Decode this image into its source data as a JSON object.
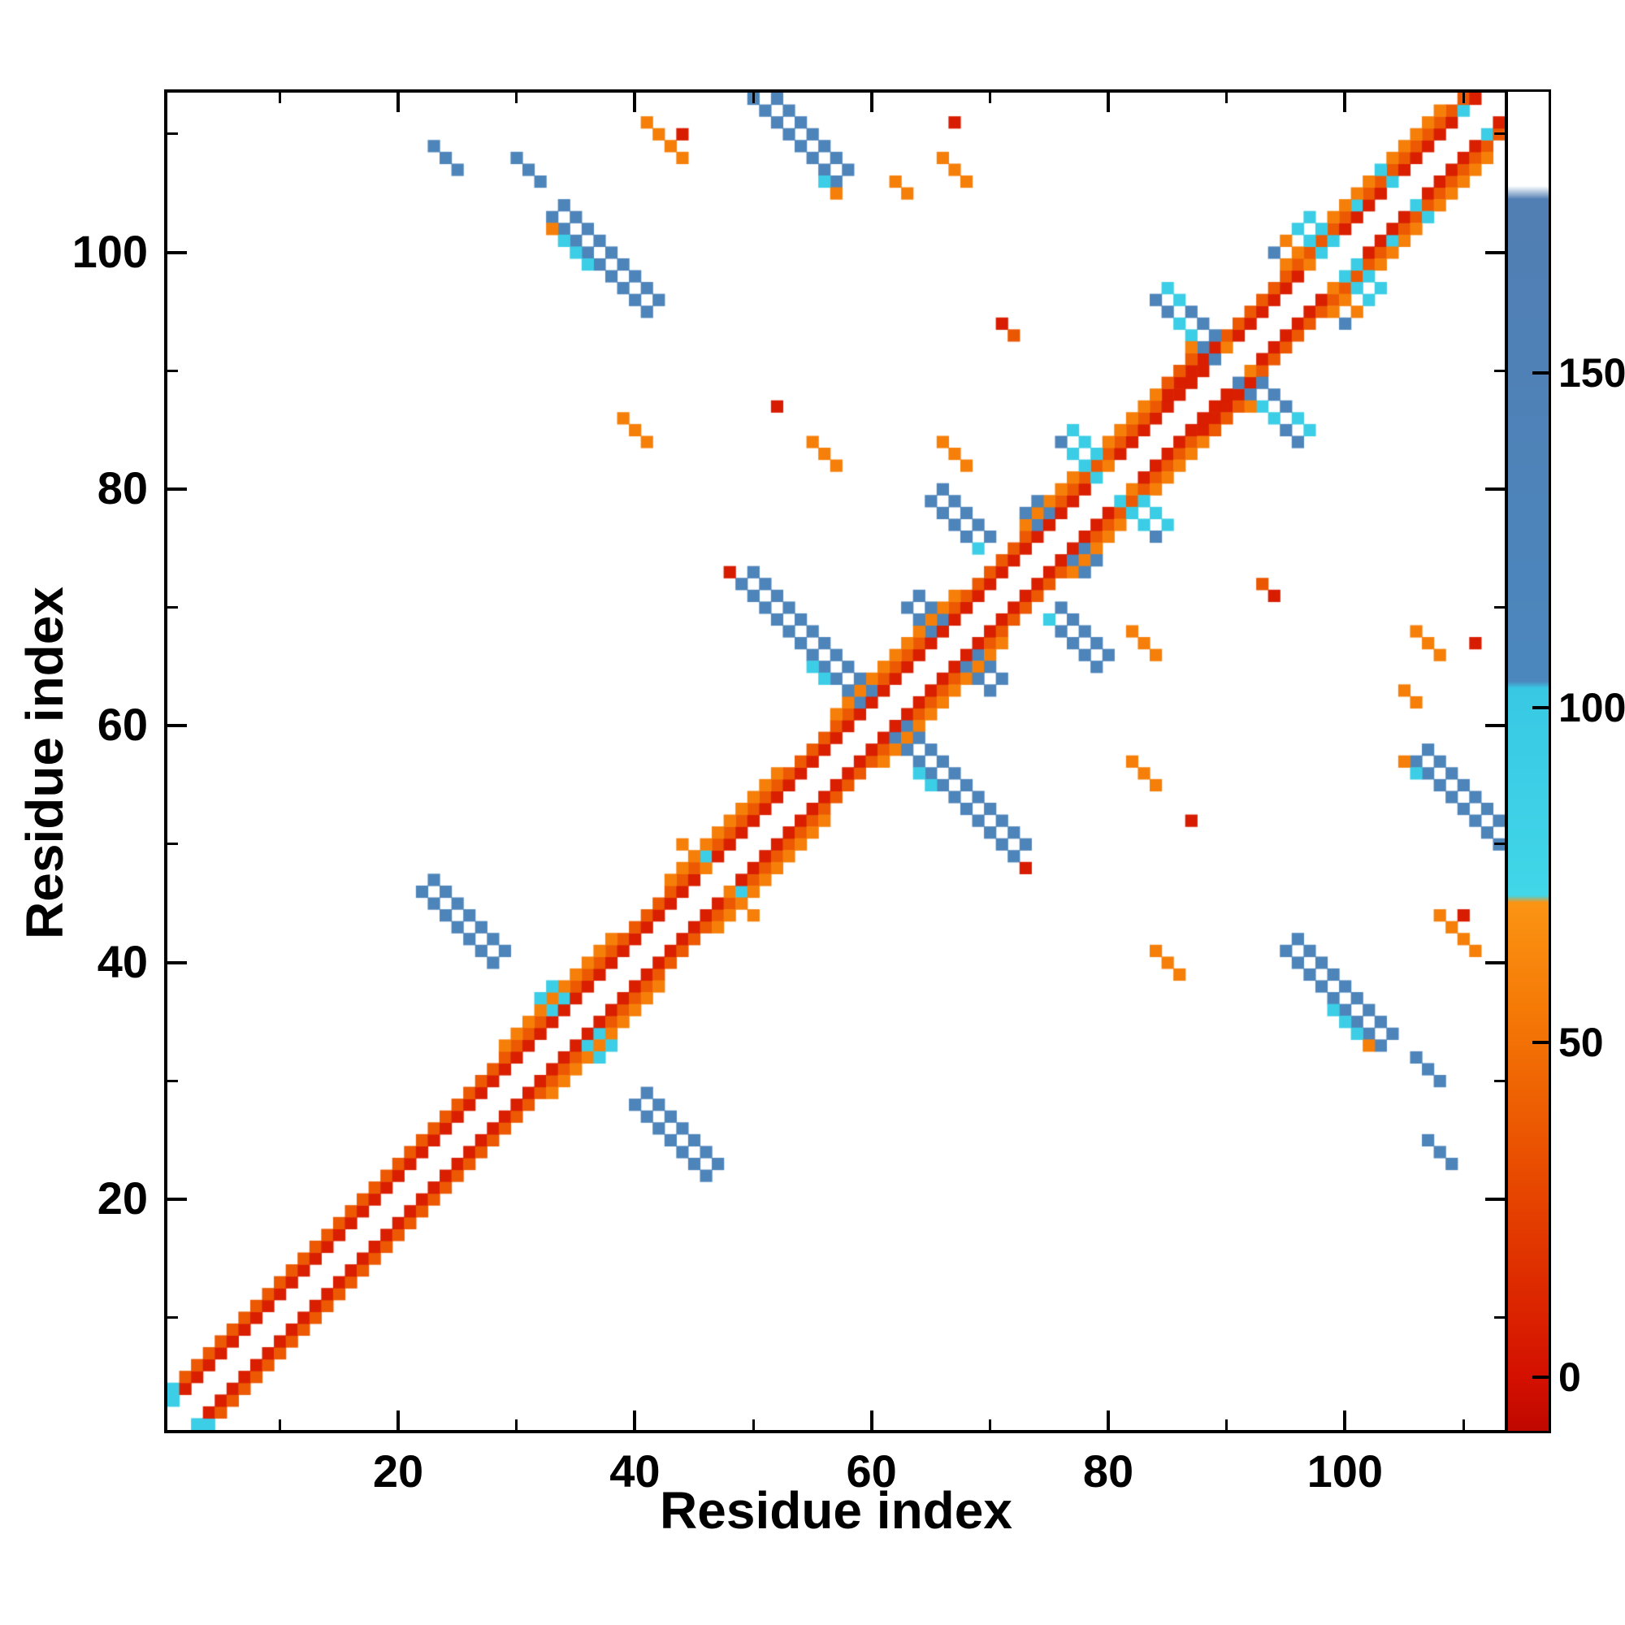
{
  "chart_data": {
    "type": "heatmap",
    "title": "",
    "xlabel": "Residue index",
    "ylabel": "Residue index",
    "n_residues": 113,
    "x_ticks": [
      20,
      40,
      60,
      80,
      100
    ],
    "y_ticks": [
      20,
      40,
      60,
      80,
      100
    ],
    "minor_ticks": [
      10,
      30,
      50,
      70,
      90,
      110
    ],
    "background_value_color": "#ffffff",
    "colorbar": {
      "ticks": [
        150,
        100,
        50,
        0
      ],
      "vmin": -8,
      "vmax": 192
    },
    "colormap_stops": [
      [
        -8,
        "#bf0800"
      ],
      [
        0,
        "#d41000"
      ],
      [
        30,
        "#e84a00"
      ],
      [
        55,
        "#f57a06"
      ],
      [
        71,
        "#fb9414"
      ],
      [
        72,
        "#41d6e8"
      ],
      [
        103,
        "#38c8e4"
      ],
      [
        104,
        "#4b87bd"
      ],
      [
        176,
        "#517eb3"
      ],
      [
        178,
        "#ffffff"
      ],
      [
        192,
        "#ffffff"
      ]
    ],
    "diagonal_band": {
      "white_halfwidth": 1,
      "red_offset": 2,
      "red_value": 8,
      "orange_offset": 3,
      "orange_value": 38,
      "wide_orange_value": 58,
      "wide_orange_ranges": [
        [
          29,
          38
        ],
        [
          43,
          52
        ],
        [
          57,
          67
        ],
        [
          73,
          84
        ],
        [
          95,
          108
        ]
      ],
      "red_blob_ranges": [
        [
          85,
          89
        ]
      ]
    },
    "contact_segments": [
      {
        "x": 22,
        "y": 46,
        "len": 7,
        "w": 2,
        "v": 128
      },
      {
        "x": 32,
        "y": 37,
        "len": 4,
        "w": 2,
        "v": 90
      },
      {
        "x": 33,
        "y": 103,
        "len": 9,
        "w": 2,
        "v": 128
      },
      {
        "x": 34,
        "y": 101,
        "len": 3,
        "w": 1,
        "v": 90
      },
      {
        "x": 39,
        "y": 86,
        "len": 3,
        "w": 1,
        "v": 58
      },
      {
        "x": 41,
        "y": 111,
        "len": 4,
        "w": 1,
        "v": 58
      },
      {
        "x": 23,
        "y": 109,
        "len": 3,
        "w": 1,
        "v": 124
      },
      {
        "x": 30,
        "y": 108,
        "len": 3,
        "w": 1,
        "v": 124
      },
      {
        "x": 44,
        "y": 50,
        "len": 4,
        "w": 1,
        "v": 58
      },
      {
        "x": 49,
        "y": 72,
        "len": 11,
        "w": 2,
        "v": 128
      },
      {
        "x": 50,
        "y": 113,
        "len": 8,
        "w": 2,
        "v": 128
      },
      {
        "x": 63,
        "y": 70,
        "len": 4,
        "w": 2,
        "v": 128
      },
      {
        "x": 65,
        "y": 79,
        "len": 5,
        "w": 2,
        "v": 128
      },
      {
        "x": 73,
        "y": 78,
        "len": 3,
        "w": 2,
        "v": 128
      },
      {
        "x": 76,
        "y": 84,
        "len": 8,
        "w": 2,
        "v": 92
      },
      {
        "x": 66,
        "y": 84,
        "len": 3,
        "w": 1,
        "v": 58
      },
      {
        "x": 55,
        "y": 84,
        "len": 3,
        "w": 1,
        "v": 58
      },
      {
        "x": 66,
        "y": 108,
        "len": 3,
        "w": 1,
        "v": 58
      },
      {
        "x": 84,
        "y": 96,
        "len": 11,
        "w": 2,
        "v": 128
      },
      {
        "x": 85,
        "y": 97,
        "len": 2,
        "w": 1,
        "v": 90
      },
      {
        "x": 93,
        "y": 87,
        "len": 2,
        "w": 1,
        "v": 90
      },
      {
        "x": 96,
        "y": 102,
        "len": 4,
        "w": 2,
        "v": 92
      },
      {
        "x": 103,
        "y": 107,
        "len": 3,
        "w": 1,
        "v": 92
      }
    ],
    "contact_dots": [
      {
        "x": 1,
        "y": 3,
        "v": 90
      },
      {
        "x": 1,
        "y": 4,
        "v": 90
      },
      {
        "x": 33,
        "y": 102,
        "v": 58
      },
      {
        "x": 44,
        "y": 110,
        "v": 6
      },
      {
        "x": 46,
        "y": 49,
        "v": 90
      },
      {
        "x": 48,
        "y": 73,
        "v": 6
      },
      {
        "x": 52,
        "y": 87,
        "v": 6
      },
      {
        "x": 55,
        "y": 65,
        "v": 90
      },
      {
        "x": 56,
        "y": 64,
        "v": 90
      },
      {
        "x": 56,
        "y": 106,
        "v": 90
      },
      {
        "x": 57,
        "y": 105,
        "v": 58
      },
      {
        "x": 62,
        "y": 106,
        "v": 58
      },
      {
        "x": 63,
        "y": 105,
        "v": 58
      },
      {
        "x": 67,
        "y": 111,
        "v": 6
      },
      {
        "x": 69,
        "y": 75,
        "v": 90
      },
      {
        "x": 71,
        "y": 94,
        "v": 6
      },
      {
        "x": 72,
        "y": 93,
        "v": 36
      },
      {
        "x": 76,
        "y": 84,
        "v": 128
      },
      {
        "x": 80,
        "y": 82,
        "v": 58
      },
      {
        "x": 87,
        "y": 92,
        "v": 58
      },
      {
        "x": 90,
        "y": 92,
        "v": 58
      },
      {
        "x": 94,
        "y": 100,
        "v": 128
      },
      {
        "x": 95,
        "y": 101,
        "v": 58
      },
      {
        "x": 97,
        "y": 99,
        "v": 58
      },
      {
        "x": 101,
        "y": 104,
        "v": 90
      },
      {
        "x": 105,
        "y": 106,
        "v": 124
      },
      {
        "x": 110,
        "y": 112,
        "v": 90
      }
    ]
  }
}
